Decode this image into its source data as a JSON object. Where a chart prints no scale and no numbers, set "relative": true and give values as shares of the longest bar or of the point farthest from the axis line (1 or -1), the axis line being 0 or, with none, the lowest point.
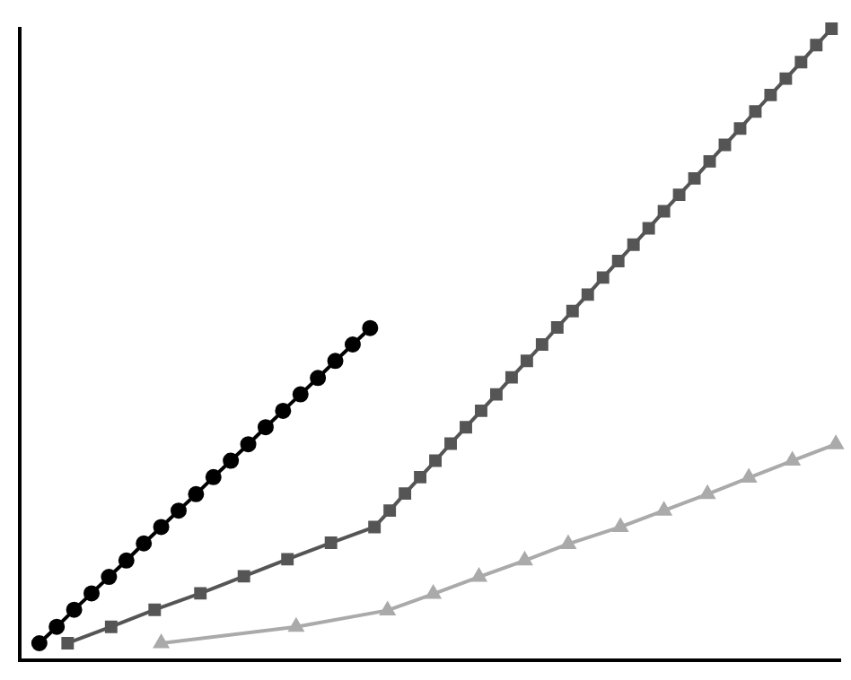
{
  "chart_data": {
    "type": "line",
    "relative": true,
    "legend": false,
    "grid": false,
    "tick_labels": false,
    "categories": [
      null,
      null,
      null,
      null,
      null,
      null,
      null,
      null,
      null,
      null,
      null,
      null,
      null,
      null,
      null,
      null,
      null,
      null,
      null,
      null,
      null,
      null,
      null,
      null,
      null,
      null,
      null,
      null,
      null,
      null,
      null,
      null,
      null,
      null,
      null,
      null,
      null,
      null,
      null,
      null,
      null,
      null,
      null,
      null,
      null,
      null,
      null,
      null,
      null,
      null,
      null,
      null,
      null,
      null,
      null,
      null,
      null,
      null,
      null,
      null,
      null,
      null,
      null,
      null,
      null,
      null,
      null,
      null,
      null,
      null,
      null,
      null,
      null,
      null,
      null,
      null,
      null,
      null,
      null,
      null,
      null,
      null,
      null,
      null,
      null,
      null,
      null,
      null,
      null,
      null,
      null,
      null,
      null,
      null,
      null,
      null,
      null,
      null,
      null,
      null,
      null,
      null,
      null,
      null,
      null,
      null,
      null,
      null,
      null,
      null,
      null,
      null,
      null,
      null,
      null,
      null,
      null,
      null,
      null,
      null,
      null,
      null,
      null,
      null,
      null,
      null,
      null,
      null,
      null,
      null,
      null,
      null,
      null,
      null,
      null,
      null,
      null,
      null,
      null,
      null,
      null,
      null,
      null,
      null,
      null,
      null,
      null,
      null,
      null,
      null,
      null,
      null,
      null,
      null,
      null,
      null,
      null,
      null,
      null,
      null,
      null,
      null,
      null,
      null,
      null,
      null,
      null,
      null,
      null,
      null,
      null,
      null,
      null,
      null,
      null,
      null,
      null,
      null,
      null,
      null,
      null,
      null,
      null,
      null,
      null,
      null,
      null,
      null,
      null,
      null,
      null,
      null,
      null,
      null,
      null,
      null,
      null,
      null,
      null,
      null,
      null,
      null,
      null,
      null,
      null,
      null,
      null,
      null,
      null,
      null,
      null,
      null,
      null,
      null,
      null,
      null,
      null,
      null,
      null,
      null,
      null,
      null,
      null,
      null,
      null,
      null,
      null,
      null,
      null,
      null,
      null,
      null,
      null,
      null,
      null,
      null,
      null,
      null,
      null,
      null,
      null,
      null,
      null,
      null,
      null,
      null,
      null,
      null,
      null,
      null,
      null,
      null,
      null,
      null,
      null,
      null,
      null,
      null,
      null,
      null,
      null,
      null,
      null,
      null,
      null,
      null,
      null,
      null,
      null,
      null,
      null,
      null,
      null,
      null,
      null,
      null,
      null,
      null,
      null,
      null,
      null,
      null,
      null,
      null,
      null,
      null,
      null,
      null,
      null,
      null,
      null,
      null,
      null,
      null,
      null,
      null,
      null,
      null,
      null,
      null,
      null,
      null,
      null,
      null,
      null,
      null,
      null,
      null,
      null,
      null,
      null,
      null,
      null,
      null,
      null,
      null,
      null,
      null,
      null,
      null,
      null,
      null,
      null,
      null,
      null,
      null,
      null,
      null,
      null,
      null,
      null,
      null,
      null,
      null,
      null,
      null,
      null,
      null,
      null,
      null,
      null,
      null,
      null,
      null,
      null,
      null,
      null,
      null,
      null,
      null,
      null,
      null,
      null,
      null,
      null,
      null,
      null,
      null,
      null,
      null,
      null,
      null,
      null,
      null,
      null,
      null,
      null,
      null,
      null,
      null,
      null,
      null,
      null,
      null,
      null,
      null,
      null,
      null
    ],
    "series": [
      {
        "color": "#000000",
        "marker": "circle",
        "values": [
          null,
          null,
          null,
          null,
          null,
          null,
          null,
          null,
          null,
          0.027,
          null,
          null,
          null,
          null,
          null,
          null,
          null,
          0.053,
          null,
          null,
          null,
          null,
          null,
          null,
          null,
          0.08,
          null,
          null,
          null,
          null,
          null,
          null,
          null,
          0.106,
          null,
          null,
          null,
          null,
          null,
          null,
          null,
          0.132,
          null,
          null,
          null,
          null,
          null,
          null,
          null,
          0.158,
          null,
          null,
          null,
          null,
          null,
          null,
          null,
          0.185,
          null,
          null,
          null,
          null,
          null,
          null,
          null,
          0.211,
          null,
          null,
          null,
          null,
          null,
          null,
          null,
          0.237,
          null,
          null,
          null,
          null,
          null,
          null,
          null,
          0.263,
          null,
          null,
          null,
          null,
          null,
          null,
          null,
          0.29,
          null,
          null,
          null,
          null,
          null,
          null,
          null,
          0.316,
          null,
          null,
          null,
          null,
          null,
          null,
          null,
          0.342,
          null,
          null,
          null,
          null,
          null,
          null,
          null,
          0.369,
          null,
          null,
          null,
          null,
          null,
          null,
          null,
          0.395,
          null,
          null,
          null,
          null,
          null,
          null,
          null,
          0.421,
          null,
          null,
          null,
          null,
          null,
          null,
          null,
          0.447,
          null,
          null,
          null,
          null,
          null,
          null,
          null,
          0.474,
          null,
          null,
          null,
          null,
          null,
          null,
          null,
          0.5,
          null,
          null,
          null,
          null,
          null,
          null,
          null,
          0.526,
          null,
          null,
          null,
          null,
          null,
          null,
          null,
          null,
          null,
          null,
          null,
          null,
          null,
          null,
          null,
          null,
          null,
          null,
          null,
          null,
          null,
          null,
          null,
          null,
          null,
          null,
          null,
          null,
          null,
          null,
          null,
          null,
          null,
          null,
          null,
          null,
          null,
          null,
          null,
          null,
          null,
          null,
          null,
          null,
          null,
          null,
          null,
          null,
          null,
          null,
          null,
          null,
          null,
          null,
          null,
          null,
          null,
          null,
          null,
          null,
          null,
          null,
          null,
          null,
          null,
          null,
          null,
          null,
          null,
          null,
          null,
          null,
          null,
          null,
          null,
          null,
          null,
          null,
          null,
          null,
          null,
          null,
          null,
          null,
          null,
          null,
          null,
          null,
          null,
          null,
          null,
          null,
          null,
          null,
          null,
          null,
          null,
          null,
          null,
          null,
          null,
          null,
          null,
          null,
          null,
          null,
          null,
          null,
          null,
          null,
          null,
          null,
          null,
          null,
          null,
          null,
          null,
          null,
          null,
          null,
          null,
          null,
          null,
          null,
          null,
          null,
          null,
          null,
          null,
          null,
          null,
          null,
          null,
          null,
          null,
          null,
          null,
          null,
          null,
          null,
          null,
          null,
          null,
          null,
          null,
          null,
          null,
          null,
          null,
          null,
          null,
          null,
          null,
          null,
          null,
          null,
          null,
          null,
          null,
          null,
          null,
          null,
          null,
          null,
          null,
          null,
          null,
          null,
          null,
          null,
          null,
          null,
          null,
          null,
          null,
          null,
          null,
          null,
          null,
          null,
          null,
          null,
          null,
          null,
          null,
          null,
          null,
          null,
          null,
          null,
          null,
          null,
          null,
          null,
          null,
          null,
          null,
          null,
          null,
          null,
          null,
          null,
          null,
          null,
          null,
          null,
          null,
          null,
          null,
          null,
          null,
          null,
          null,
          null,
          null,
          null
        ]
      },
      {
        "color": "#555555",
        "marker": "square",
        "values": [
          null,
          null,
          null,
          null,
          null,
          null,
          null,
          null,
          null,
          null,
          null,
          null,
          null,
          null,
          null,
          null,
          null,
          null,
          null,
          null,
          null,
          null,
          0.027,
          null,
          null,
          null,
          null,
          null,
          null,
          null,
          null,
          null,
          null,
          null,
          null,
          null,
          null,
          null,
          null,
          null,
          null,
          null,
          0.053,
          null,
          null,
          null,
          null,
          null,
          null,
          null,
          null,
          null,
          null,
          null,
          null,
          null,
          null,
          null,
          null,
          null,
          null,
          null,
          0.08,
          null,
          null,
          null,
          null,
          null,
          null,
          null,
          null,
          null,
          null,
          null,
          null,
          null,
          null,
          null,
          null,
          null,
          null,
          null,
          null,
          0.106,
          null,
          null,
          null,
          null,
          null,
          null,
          null,
          null,
          null,
          null,
          null,
          null,
          null,
          null,
          null,
          null,
          null,
          null,
          null,
          0.133,
          null,
          null,
          null,
          null,
          null,
          null,
          null,
          null,
          null,
          null,
          null,
          null,
          null,
          null,
          null,
          null,
          null,
          null,
          null,
          0.16,
          null,
          null,
          null,
          null,
          null,
          null,
          null,
          null,
          null,
          null,
          null,
          null,
          null,
          null,
          null,
          null,
          null,
          null,
          null,
          0.186,
          null,
          null,
          null,
          null,
          null,
          null,
          null,
          null,
          null,
          null,
          null,
          null,
          null,
          null,
          null,
          null,
          null,
          null,
          null,
          0.211,
          null,
          null,
          null,
          null,
          null,
          null,
          0.237,
          null,
          null,
          null,
          null,
          null,
          null,
          0.264,
          null,
          null,
          null,
          null,
          null,
          null,
          0.29,
          null,
          null,
          null,
          null,
          null,
          null,
          0.316,
          null,
          null,
          null,
          null,
          null,
          null,
          0.343,
          null,
          null,
          null,
          null,
          null,
          null,
          0.369,
          null,
          null,
          null,
          null,
          null,
          null,
          0.395,
          null,
          null,
          null,
          null,
          null,
          null,
          0.421,
          null,
          null,
          null,
          null,
          null,
          null,
          0.448,
          null,
          null,
          null,
          null,
          null,
          null,
          0.474,
          null,
          null,
          null,
          null,
          null,
          null,
          0.5,
          null,
          null,
          null,
          null,
          null,
          null,
          0.527,
          null,
          null,
          null,
          null,
          null,
          null,
          0.553,
          null,
          null,
          null,
          null,
          null,
          null,
          0.579,
          null,
          null,
          null,
          null,
          null,
          null,
          0.606,
          null,
          null,
          null,
          null,
          null,
          null,
          0.632,
          null,
          null,
          null,
          null,
          null,
          null,
          0.658,
          null,
          null,
          null,
          null,
          null,
          null,
          0.684,
          null,
          null,
          null,
          null,
          null,
          null,
          0.711,
          null,
          null,
          null,
          null,
          null,
          null,
          0.737,
          null,
          null,
          null,
          null,
          null,
          null,
          0.763,
          null,
          null,
          null,
          null,
          null,
          null,
          0.79,
          null,
          null,
          null,
          null,
          null,
          null,
          0.816,
          null,
          null,
          null,
          null,
          null,
          null,
          0.842,
          null,
          null,
          null,
          null,
          null,
          null,
          0.869,
          null,
          null,
          null,
          null,
          null,
          null,
          0.895,
          null,
          null,
          null,
          null,
          null,
          null,
          0.921,
          null,
          null,
          null,
          null,
          null,
          null,
          0.947,
          null,
          null,
          null,
          null,
          null,
          null,
          0.974,
          null,
          null,
          null,
          null,
          null,
          null,
          1.0,
          null,
          null,
          null,
          null
        ]
      },
      {
        "color": "#aaaaaa",
        "marker": "triangle",
        "values": [
          null,
          null,
          null,
          null,
          null,
          null,
          null,
          null,
          null,
          null,
          null,
          null,
          null,
          null,
          null,
          null,
          null,
          null,
          null,
          null,
          null,
          null,
          null,
          null,
          null,
          null,
          null,
          null,
          null,
          null,
          null,
          null,
          null,
          null,
          null,
          null,
          null,
          null,
          null,
          null,
          null,
          null,
          null,
          null,
          null,
          null,
          null,
          null,
          null,
          null,
          null,
          null,
          null,
          null,
          null,
          null,
          null,
          null,
          null,
          null,
          null,
          null,
          null,
          null,
          null,
          0.027,
          null,
          null,
          null,
          null,
          null,
          null,
          null,
          null,
          null,
          null,
          null,
          null,
          null,
          null,
          null,
          null,
          null,
          null,
          null,
          null,
          null,
          null,
          null,
          null,
          null,
          null,
          null,
          null,
          null,
          null,
          null,
          null,
          null,
          null,
          null,
          null,
          null,
          null,
          null,
          null,
          null,
          null,
          null,
          null,
          null,
          null,
          null,
          null,
          null,
          null,
          null,
          null,
          null,
          null,
          null,
          null,
          null,
          null,
          null,
          null,
          null,
          0.053,
          null,
          null,
          null,
          null,
          null,
          null,
          null,
          null,
          null,
          null,
          null,
          null,
          null,
          null,
          null,
          null,
          null,
          null,
          null,
          null,
          null,
          null,
          null,
          null,
          null,
          null,
          null,
          null,
          null,
          null,
          null,
          null,
          null,
          null,
          null,
          null,
          null,
          null,
          null,
          null,
          null,
          0.079,
          null,
          null,
          null,
          null,
          null,
          null,
          null,
          null,
          null,
          null,
          null,
          null,
          null,
          null,
          null,
          null,
          null,
          null,
          null,
          null,
          0.105,
          null,
          null,
          null,
          null,
          null,
          null,
          null,
          null,
          null,
          null,
          null,
          null,
          null,
          null,
          null,
          null,
          null,
          null,
          null,
          null,
          0.132,
          null,
          null,
          null,
          null,
          null,
          null,
          null,
          null,
          null,
          null,
          null,
          null,
          null,
          null,
          null,
          null,
          null,
          null,
          null,
          null,
          0.158,
          null,
          null,
          null,
          null,
          null,
          null,
          null,
          null,
          null,
          null,
          null,
          null,
          null,
          null,
          null,
          null,
          null,
          null,
          null,
          0.184,
          null,
          null,
          null,
          null,
          null,
          null,
          null,
          null,
          null,
          null,
          null,
          null,
          null,
          null,
          null,
          null,
          null,
          null,
          null,
          null,
          null,
          null,
          null,
          0.211,
          null,
          null,
          null,
          null,
          null,
          null,
          null,
          null,
          null,
          null,
          null,
          null,
          null,
          null,
          null,
          null,
          null,
          null,
          null,
          0.237,
          null,
          null,
          null,
          null,
          null,
          null,
          null,
          null,
          null,
          null,
          null,
          null,
          null,
          null,
          null,
          null,
          null,
          null,
          null,
          0.263,
          null,
          null,
          null,
          null,
          null,
          null,
          null,
          null,
          null,
          null,
          null,
          null,
          null,
          null,
          null,
          null,
          null,
          null,
          0.289,
          null,
          null,
          null,
          null,
          null,
          null,
          null,
          null,
          null,
          null,
          null,
          null,
          null,
          null,
          null,
          null,
          null,
          null,
          null,
          0.316,
          null,
          null,
          null,
          null,
          null,
          null,
          null,
          null,
          null,
          null,
          null,
          null,
          null,
          null,
          null,
          null,
          null,
          null,
          null,
          0.342,
          null,
          null
        ]
      }
    ]
  }
}
